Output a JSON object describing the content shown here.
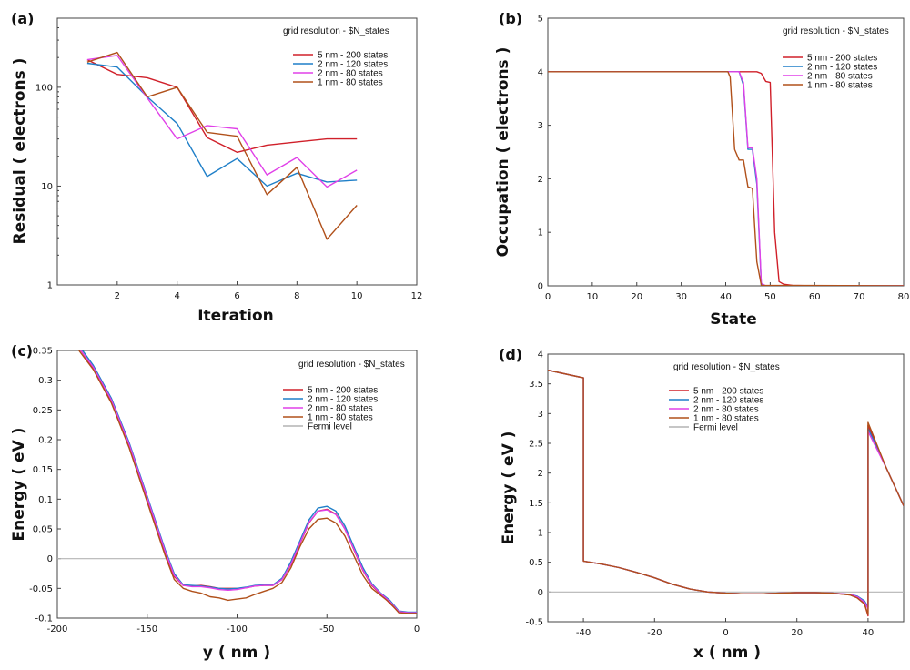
{
  "colors": {
    "red": "#d0202a",
    "blue": "#1f7fc8",
    "magenta": "#e040e8",
    "brown": "#b0501a",
    "gray": "#b4b4b4"
  },
  "chart_data": [
    {
      "panel": "(a)",
      "type": "line",
      "xlabel": "Iteration",
      "ylabel": "Residual ( electrons )",
      "xlim": [
        0,
        12
      ],
      "ylim": [
        1,
        500
      ],
      "yscale": "log",
      "xticks": [
        2,
        4,
        6,
        8,
        10,
        12
      ],
      "yticks": [
        1,
        10,
        100
      ],
      "grid": false,
      "legend_title": "grid resolution - $N_states",
      "legend_position": "top-right",
      "series": [
        {
          "name": "5 nm - 200 states",
          "color": "red",
          "x": [
            1,
            2,
            3,
            4,
            5,
            6,
            7,
            8,
            9,
            10
          ],
          "y": [
            190,
            135,
            125,
            100,
            31,
            22,
            26,
            28,
            30,
            30
          ]
        },
        {
          "name": "2 nm - 120 states",
          "color": "blue",
          "x": [
            1,
            2,
            3,
            4,
            5,
            6,
            7,
            8,
            9,
            10
          ],
          "y": [
            175,
            160,
            80,
            43,
            12.5,
            19,
            10,
            13.5,
            11,
            11.5
          ]
        },
        {
          "name": "2 nm - 80 states",
          "color": "magenta",
          "x": [
            1,
            2,
            3,
            4,
            5,
            6,
            7,
            8,
            9,
            10
          ],
          "y": [
            190,
            210,
            78,
            30,
            41,
            38,
            13,
            19.5,
            9.8,
            14.5
          ]
        },
        {
          "name": "1 nm - 80 states",
          "color": "brown",
          "x": [
            1,
            2,
            3,
            4,
            5,
            6,
            7,
            8,
            9,
            10
          ],
          "y": [
            180,
            225,
            80,
            100,
            35,
            32,
            8.2,
            15.5,
            2.9,
            6.4
          ]
        }
      ]
    },
    {
      "panel": "(b)",
      "type": "line",
      "xlabel": "State",
      "ylabel": "Occupation ( electrons )",
      "xlim": [
        0,
        80
      ],
      "ylim": [
        0,
        5
      ],
      "xticks": [
        0,
        10,
        20,
        30,
        40,
        50,
        60,
        70,
        80
      ],
      "yticks": [
        0,
        1,
        2,
        3,
        4,
        5
      ],
      "grid": false,
      "legend_title": "grid resolution - $N_states",
      "legend_position": "top-right",
      "series": [
        {
          "name": "5 nm - 200 states",
          "color": "red",
          "x": [
            0,
            47,
            48,
            49,
            50,
            51,
            52,
            53,
            55,
            60,
            80
          ],
          "y": [
            4,
            4,
            3.97,
            3.82,
            3.8,
            1.0,
            0.08,
            0.03,
            0.01,
            0,
            0
          ]
        },
        {
          "name": "2 nm - 120 states",
          "color": "blue",
          "x": [
            0,
            43,
            44,
            45,
            46,
            47,
            48,
            49,
            80
          ],
          "y": [
            4,
            4,
            3.75,
            2.55,
            2.55,
            1.9,
            0.02,
            0,
            0
          ]
        },
        {
          "name": "2 nm - 80 states",
          "color": "magenta",
          "x": [
            0,
            43,
            44,
            45,
            46,
            47,
            48,
            49,
            80
          ],
          "y": [
            4,
            4,
            3.8,
            2.58,
            2.58,
            2.0,
            0.05,
            0,
            0
          ]
        },
        {
          "name": "1 nm - 80 states",
          "color": "brown",
          "x": [
            0,
            40.5,
            41,
            42,
            43,
            44,
            45,
            46,
            47,
            48,
            80
          ],
          "y": [
            4,
            4,
            3.9,
            2.55,
            2.35,
            2.35,
            1.85,
            1.82,
            0.45,
            0.01,
            0
          ]
        }
      ]
    },
    {
      "panel": "(c)",
      "type": "line",
      "xlabel": "y ( nm )",
      "ylabel": "Energy ( eV )",
      "xlim": [
        -200,
        0
      ],
      "ylim": [
        -0.1,
        0.35
      ],
      "xticks": [
        -200,
        -150,
        -100,
        -50,
        0
      ],
      "yticks": [
        -0.1,
        -0.05,
        0,
        0.05,
        0.1,
        0.15,
        0.2,
        0.25,
        0.3,
        0.35
      ],
      "grid": false,
      "legend_title": "grid resolution - $N_states",
      "legend_position": "top-right",
      "series": [
        {
          "name": "5 nm - 200 states",
          "color": "red",
          "x": [
            -187,
            -180,
            -170,
            -160,
            -150,
            -140,
            -135,
            -130,
            -125,
            -120,
            -115,
            -110,
            -105,
            -100,
            -95,
            -90,
            -85,
            -80,
            -75,
            -70,
            -65,
            -60,
            -55,
            -50,
            -45,
            -40,
            -35,
            -30,
            -25,
            -20,
            -15,
            -10,
            -5,
            0
          ],
          "y": [
            0.35,
            0.32,
            0.265,
            0.19,
            0.1,
            0.01,
            -0.03,
            -0.045,
            -0.046,
            -0.045,
            -0.047,
            -0.05,
            -0.05,
            -0.05,
            -0.049,
            -0.046,
            -0.045,
            -0.045,
            -0.035,
            -0.01,
            0.025,
            0.06,
            0.08,
            0.083,
            0.075,
            0.05,
            0.015,
            -0.02,
            -0.045,
            -0.06,
            -0.075,
            -0.09,
            -0.091,
            -0.091
          ]
        },
        {
          "name": "2 nm - 120 states",
          "color": "blue",
          "x": [
            -186,
            -180,
            -170,
            -160,
            -150,
            -140,
            -135,
            -130,
            -125,
            -120,
            -115,
            -110,
            -105,
            -100,
            -95,
            -90,
            -85,
            -80,
            -75,
            -70,
            -65,
            -60,
            -55,
            -50,
            -45,
            -40,
            -35,
            -30,
            -25,
            -20,
            -15,
            -10,
            -5,
            0
          ],
          "y": [
            0.35,
            0.325,
            0.27,
            0.195,
            0.105,
            0.015,
            -0.025,
            -0.044,
            -0.045,
            -0.046,
            -0.048,
            -0.05,
            -0.051,
            -0.05,
            -0.048,
            -0.045,
            -0.044,
            -0.044,
            -0.033,
            -0.005,
            0.03,
            0.065,
            0.085,
            0.088,
            0.08,
            0.055,
            0.02,
            -0.015,
            -0.042,
            -0.058,
            -0.07,
            -0.088,
            -0.09,
            -0.09
          ]
        },
        {
          "name": "2 nm - 80 states",
          "color": "magenta",
          "x": [
            -187,
            -180,
            -170,
            -160,
            -150,
            -140,
            -135,
            -130,
            -125,
            -120,
            -115,
            -110,
            -105,
            -100,
            -95,
            -90,
            -85,
            -80,
            -75,
            -70,
            -65,
            -60,
            -55,
            -50,
            -45,
            -40,
            -35,
            -30,
            -25,
            -20,
            -15,
            -10,
            -5,
            0
          ],
          "y": [
            0.35,
            0.322,
            0.267,
            0.192,
            0.102,
            0.012,
            -0.028,
            -0.045,
            -0.047,
            -0.047,
            -0.049,
            -0.052,
            -0.053,
            -0.052,
            -0.049,
            -0.046,
            -0.045,
            -0.045,
            -0.035,
            -0.009,
            0.026,
            0.061,
            0.08,
            0.082,
            0.074,
            0.05,
            0.016,
            -0.019,
            -0.044,
            -0.059,
            -0.072,
            -0.089,
            -0.091,
            -0.091
          ]
        },
        {
          "name": "1 nm - 80 states",
          "color": "brown",
          "x": [
            -188,
            -180,
            -170,
            -160,
            -150,
            -140,
            -135,
            -130,
            -125,
            -120,
            -115,
            -110,
            -105,
            -100,
            -95,
            -90,
            -85,
            -80,
            -75,
            -70,
            -65,
            -60,
            -55,
            -50,
            -45,
            -40,
            -35,
            -30,
            -25,
            -20,
            -15,
            -10,
            -5,
            0
          ],
          "y": [
            0.35,
            0.318,
            0.262,
            0.186,
            0.095,
            0.005,
            -0.035,
            -0.05,
            -0.055,
            -0.058,
            -0.064,
            -0.066,
            -0.07,
            -0.068,
            -0.066,
            -0.06,
            -0.055,
            -0.05,
            -0.04,
            -0.015,
            0.02,
            0.05,
            0.066,
            0.068,
            0.06,
            0.038,
            0.005,
            -0.028,
            -0.05,
            -0.062,
            -0.074,
            -0.091,
            -0.092,
            -0.092
          ]
        },
        {
          "name": "Fermi level",
          "color": "gray",
          "x": [
            -200,
            0
          ],
          "y": [
            0,
            0
          ]
        }
      ]
    },
    {
      "panel": "(d)",
      "type": "line",
      "xlabel": "x ( nm )",
      "ylabel": "Energy ( eV )",
      "xlim": [
        -50,
        50
      ],
      "ylim": [
        -0.5,
        4
      ],
      "xticks": [
        -40,
        -20,
        0,
        20,
        40
      ],
      "yticks": [
        -0.5,
        0,
        0.5,
        1,
        1.5,
        2,
        2.5,
        3,
        3.5,
        4
      ],
      "grid": false,
      "legend_title": "grid resolution - $N_states",
      "legend_position": "top-center",
      "series": [
        {
          "name": "5 nm - 200 states",
          "color": "red",
          "x": [
            -50,
            -40,
            -40,
            -35,
            -30,
            -25,
            -20,
            -15,
            -10,
            -5,
            0,
            5,
            10,
            15,
            20,
            25,
            30,
            35,
            37,
            39,
            40,
            40,
            45,
            50
          ],
          "y": [
            3.73,
            3.6,
            0.52,
            0.47,
            0.41,
            0.33,
            0.24,
            0.13,
            0.05,
            0.0,
            -0.02,
            -0.03,
            -0.03,
            -0.02,
            -0.01,
            -0.01,
            -0.02,
            -0.05,
            -0.1,
            -0.2,
            -0.4,
            2.8,
            2.1,
            1.45
          ]
        },
        {
          "name": "2 nm - 120 states",
          "color": "blue",
          "x": [
            -50,
            -40,
            -40,
            -35,
            -30,
            -25,
            -20,
            -15,
            -10,
            -5,
            0,
            5,
            10,
            15,
            20,
            25,
            30,
            35,
            37,
            39,
            40,
            40,
            45,
            50
          ],
          "y": [
            3.73,
            3.6,
            0.52,
            0.47,
            0.41,
            0.33,
            0.24,
            0.13,
            0.05,
            0.0,
            -0.02,
            -0.03,
            -0.03,
            -0.02,
            -0.01,
            -0.01,
            -0.02,
            -0.04,
            -0.07,
            -0.15,
            -0.25,
            2.75,
            2.1,
            1.45
          ]
        },
        {
          "name": "2 nm - 80 states",
          "color": "magenta",
          "x": [
            -50,
            -40,
            -40,
            -35,
            -30,
            -25,
            -20,
            -15,
            -10,
            -5,
            0,
            5,
            10,
            15,
            20,
            25,
            30,
            35,
            37,
            39,
            40,
            40,
            45,
            50
          ],
          "y": [
            3.73,
            3.6,
            0.52,
            0.47,
            0.41,
            0.33,
            0.24,
            0.13,
            0.05,
            0.0,
            -0.02,
            -0.03,
            -0.03,
            -0.02,
            -0.01,
            -0.01,
            -0.02,
            -0.04,
            -0.08,
            -0.17,
            -0.28,
            2.7,
            2.1,
            1.45
          ]
        },
        {
          "name": "1 nm - 80 states",
          "color": "brown",
          "x": [
            -50,
            -40,
            -40,
            -35,
            -30,
            -25,
            -20,
            -15,
            -10,
            -5,
            0,
            5,
            10,
            15,
            20,
            25,
            30,
            35,
            37,
            39,
            40,
            40,
            45,
            50
          ],
          "y": [
            3.73,
            3.6,
            0.52,
            0.47,
            0.41,
            0.33,
            0.24,
            0.13,
            0.05,
            0.0,
            -0.02,
            -0.03,
            -0.03,
            -0.02,
            -0.01,
            -0.01,
            -0.02,
            -0.05,
            -0.1,
            -0.2,
            -0.38,
            2.85,
            2.1,
            1.45
          ]
        },
        {
          "name": "Fermi level",
          "color": "gray",
          "x": [
            -50,
            50
          ],
          "y": [
            0,
            0
          ]
        }
      ]
    }
  ]
}
